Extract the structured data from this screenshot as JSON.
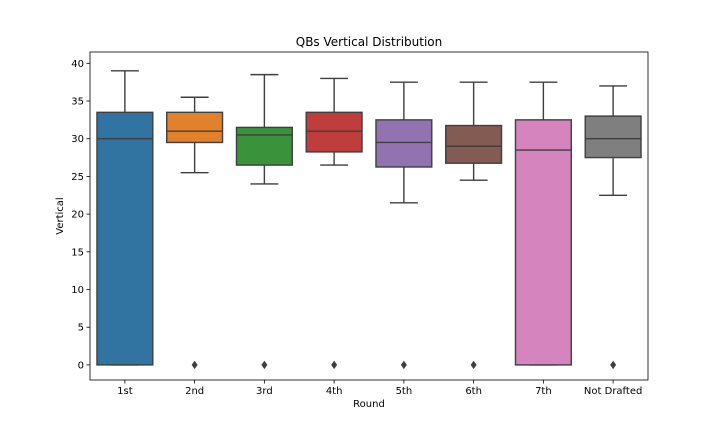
{
  "chart_data": {
    "type": "box",
    "title": "QBs Vertical Distribution",
    "xlabel": "Round",
    "ylabel": "Vertical",
    "ylim": [
      -2,
      41.5
    ],
    "yticks": [
      0,
      5,
      10,
      15,
      20,
      25,
      30,
      35,
      40
    ],
    "grid": false,
    "categories": [
      "1st",
      "2nd",
      "3rd",
      "4th",
      "5th",
      "6th",
      "7th",
      "Not Drafted"
    ],
    "colors": [
      "#3274a1",
      "#e1812c",
      "#3a923a",
      "#c03d3e",
      "#9372b2",
      "#845b53",
      "#d684bd",
      "#7f7f7f"
    ],
    "boxes": [
      {
        "whislo": 0,
        "q1": 0,
        "med": 30,
        "q3": 33.5,
        "whishi": 39,
        "fliers": []
      },
      {
        "whislo": 25.5,
        "q1": 29.5,
        "med": 31,
        "q3": 33.5,
        "whishi": 35.5,
        "fliers": [
          0
        ]
      },
      {
        "whislo": 24,
        "q1": 26.5,
        "med": 30.5,
        "q3": 31.5,
        "whishi": 38.5,
        "fliers": [
          0
        ]
      },
      {
        "whislo": 26.5,
        "q1": 28.25,
        "med": 31,
        "q3": 33.5,
        "whishi": 38,
        "fliers": [
          0
        ]
      },
      {
        "whislo": 21.5,
        "q1": 26.25,
        "med": 29.5,
        "q3": 32.5,
        "whishi": 37.5,
        "fliers": [
          0
        ]
      },
      {
        "whislo": 24.5,
        "q1": 26.75,
        "med": 29,
        "q3": 31.75,
        "whishi": 37.5,
        "fliers": [
          0
        ]
      },
      {
        "whislo": 0,
        "q1": 0,
        "med": 28.5,
        "q3": 32.5,
        "whishi": 37.5,
        "fliers": []
      },
      {
        "whislo": 22.5,
        "q1": 27.5,
        "med": 30,
        "q3": 33,
        "whishi": 37,
        "fliers": [
          0
        ]
      }
    ]
  }
}
